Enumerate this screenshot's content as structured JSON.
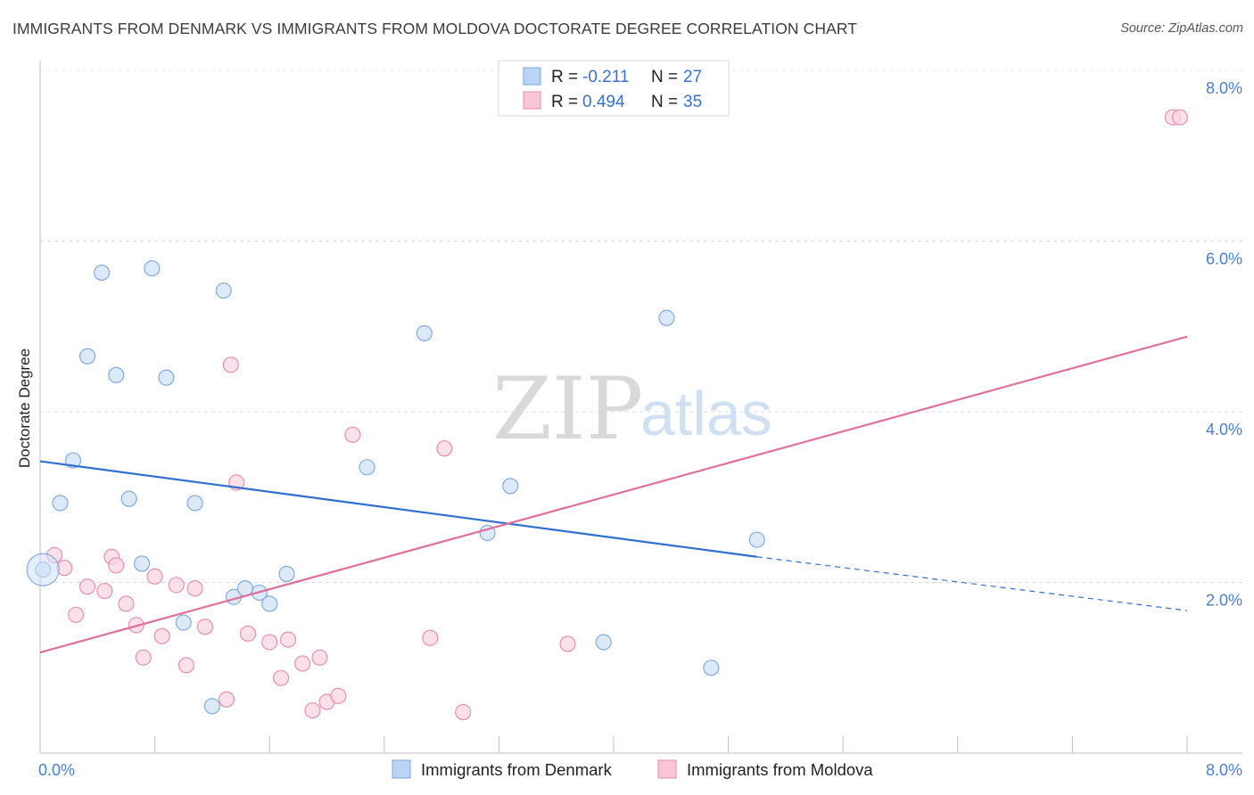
{
  "title": "IMMIGRANTS FROM DENMARK VS IMMIGRANTS FROM MOLDOVA DOCTORATE DEGREE CORRELATION CHART",
  "source": "Source: ZipAtlas.com",
  "watermark": {
    "zip": "ZIP",
    "atlas": "atlas"
  },
  "legend_box": [
    {
      "r_label": "R = ",
      "r_value": "-0.211",
      "n_label": "N = ",
      "n_value": "27",
      "fill": "#b9d4f5",
      "stroke": "#7aa6de"
    },
    {
      "r_label": "R = ",
      "r_value": "0.494",
      "n_label": "N = ",
      "n_value": "35",
      "fill": "#f9c6d6",
      "stroke": "#e58aa8"
    }
  ],
  "bottom_legend": [
    "Immigrants from Denmark",
    "Immigrants from Moldova"
  ],
  "chart_data": {
    "type": "scatter",
    "title": "IMMIGRANTS FROM DENMARK VS IMMIGRANTS FROM MOLDOVA DOCTORATE DEGREE CORRELATION CHART",
    "xlabel": "",
    "ylabel": "Doctorate Degree",
    "xlim": [
      0,
      8.1
    ],
    "ylim": [
      0,
      8.2
    ],
    "x_tick_labels": [
      "0.0%",
      "8.0%"
    ],
    "y_ticks": [
      2,
      4,
      6,
      8
    ],
    "y_tick_labels": [
      "2.0%",
      "4.0%",
      "6.0%",
      "8.0%"
    ],
    "grid": "horizontal dashed",
    "legend": "top-center",
    "series": [
      {
        "name": "Immigrants from Denmark",
        "color": "#7aa6de",
        "fill": "#cfe1f7",
        "line_color": "#2f6fd0",
        "points": [
          [
            0.02,
            2.15
          ],
          [
            0.14,
            2.93
          ],
          [
            0.23,
            3.43
          ],
          [
            0.33,
            4.65
          ],
          [
            0.43,
            5.63
          ],
          [
            0.53,
            4.43
          ],
          [
            0.62,
            2.98
          ],
          [
            0.71,
            2.22
          ],
          [
            0.78,
            5.68
          ],
          [
            0.88,
            4.4
          ],
          [
            1.0,
            1.53
          ],
          [
            1.08,
            2.93
          ],
          [
            1.2,
            0.55
          ],
          [
            1.28,
            5.42
          ],
          [
            1.35,
            1.83
          ],
          [
            1.43,
            1.93
          ],
          [
            1.53,
            1.88
          ],
          [
            1.6,
            1.75
          ],
          [
            1.72,
            2.1
          ],
          [
            2.28,
            3.35
          ],
          [
            2.68,
            4.92
          ],
          [
            3.12,
            2.58
          ],
          [
            3.28,
            3.13
          ],
          [
            3.93,
            1.3
          ],
          [
            4.37,
            5.1
          ],
          [
            4.68,
            1.0
          ],
          [
            5.0,
            2.5
          ]
        ],
        "trend": {
          "x": [
            0,
            5.0
          ],
          "y": [
            3.42,
            2.3
          ]
        },
        "trend_dashed": {
          "x": [
            5.0,
            8.0
          ],
          "y": [
            2.3,
            1.67
          ]
        }
      },
      {
        "name": "Immigrants from Moldova",
        "color": "#e58aa8",
        "fill": "#fbd5e1",
        "line_color": "#e0709a",
        "points": [
          [
            0.1,
            2.32
          ],
          [
            0.17,
            2.17
          ],
          [
            0.25,
            1.62
          ],
          [
            0.33,
            1.95
          ],
          [
            0.45,
            1.9
          ],
          [
            0.5,
            2.3
          ],
          [
            0.53,
            2.2
          ],
          [
            0.6,
            1.75
          ],
          [
            0.67,
            1.5
          ],
          [
            0.72,
            1.12
          ],
          [
            0.8,
            2.07
          ],
          [
            0.85,
            1.37
          ],
          [
            0.95,
            1.97
          ],
          [
            1.02,
            1.03
          ],
          [
            1.08,
            1.93
          ],
          [
            1.15,
            1.48
          ],
          [
            1.3,
            0.63
          ],
          [
            1.33,
            4.55
          ],
          [
            1.37,
            3.17
          ],
          [
            1.45,
            1.4
          ],
          [
            1.6,
            1.3
          ],
          [
            1.68,
            0.88
          ],
          [
            1.73,
            1.33
          ],
          [
            1.83,
            1.05
          ],
          [
            1.9,
            0.5
          ],
          [
            1.95,
            1.12
          ],
          [
            2.0,
            0.6
          ],
          [
            2.08,
            0.67
          ],
          [
            2.18,
            3.73
          ],
          [
            2.72,
            1.35
          ],
          [
            2.82,
            3.57
          ],
          [
            2.95,
            0.48
          ],
          [
            3.68,
            1.28
          ],
          [
            7.9,
            7.45
          ],
          [
            7.95,
            7.45
          ]
        ],
        "trend": {
          "x": [
            0,
            8.0
          ],
          "y": [
            1.18,
            4.88
          ]
        }
      }
    ]
  }
}
